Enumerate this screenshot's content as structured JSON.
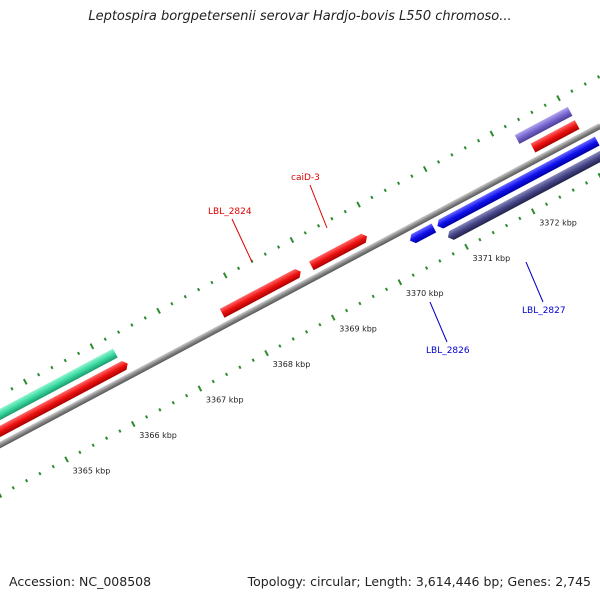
{
  "title": "Leptospira borgpetersenii serovar Hardjo-bovis L550 chromoso...",
  "footer": {
    "accession": "Accession: NC_008508",
    "summary": "Topology: circular; Length: 3,614,446 bp; Genes: 2,745"
  },
  "scale": {
    "ticks": [
      {
        "kbp": 3365,
        "label": "3365 kbp"
      },
      {
        "kbp": 3366,
        "label": "3366 kbp"
      },
      {
        "kbp": 3367,
        "label": "3367 kbp"
      },
      {
        "kbp": 3368,
        "label": "3368 kbp"
      },
      {
        "kbp": 3369,
        "label": "3369 kbp"
      },
      {
        "kbp": 3370,
        "label": "3370 kbp"
      },
      {
        "kbp": 3371,
        "label": "3371 kbp"
      },
      {
        "kbp": 3372,
        "label": "3372 kbp"
      }
    ]
  },
  "gene_labels": [
    {
      "id": "lbl-2824",
      "text": "LBL_2824",
      "color": "#dd0000"
    },
    {
      "id": "caid-3",
      "text": "caiD-3",
      "color": "#dd0000"
    },
    {
      "id": "lbl-2826",
      "text": "LBL_2826",
      "color": "#0000cc"
    },
    {
      "id": "lbl-2827",
      "text": "LBL_2827",
      "color": "#0000cc"
    }
  ],
  "colors": {
    "backbone": "#888888",
    "tick": "#2e8b2e",
    "forward_gene": "#ee1111",
    "reverse_gene": "#1010ee",
    "other_gene": "#3ad9a0",
    "pseudo_gene": "#444488",
    "purple_gene": "#7766cc"
  }
}
